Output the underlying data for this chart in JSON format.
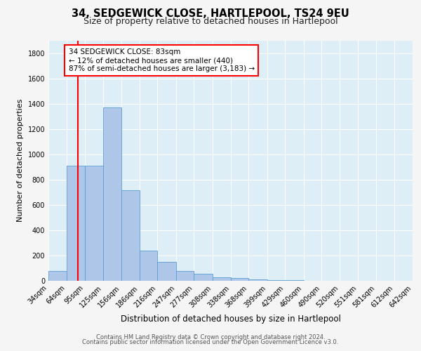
{
  "title1": "34, SEDGEWICK CLOSE, HARTLEPOOL, TS24 9EU",
  "title2": "Size of property relative to detached houses in Hartlepool",
  "xlabel": "Distribution of detached houses by size in Hartlepool",
  "ylabel": "Number of detached properties",
  "bar_left_edges": [
    34,
    64,
    95,
    125,
    156,
    186,
    216,
    247,
    277,
    308,
    338,
    368,
    399,
    429,
    460,
    490,
    520,
    551,
    581,
    612
  ],
  "bar_right_edges": [
    64,
    95,
    125,
    156,
    186,
    216,
    247,
    277,
    308,
    338,
    368,
    399,
    429,
    460,
    490,
    520,
    551,
    581,
    612,
    642
  ],
  "bar_heights": [
    75,
    910,
    910,
    1370,
    715,
    240,
    148,
    80,
    55,
    30,
    20,
    10,
    5,
    3,
    2,
    1,
    1,
    0,
    0,
    0
  ],
  "tick_labels": [
    "34sqm",
    "64sqm",
    "95sqm",
    "125sqm",
    "156sqm",
    "186sqm",
    "216sqm",
    "247sqm",
    "277sqm",
    "308sqm",
    "338sqm",
    "368sqm",
    "399sqm",
    "429sqm",
    "460sqm",
    "490sqm",
    "520sqm",
    "551sqm",
    "581sqm",
    "612sqm",
    "642sqm"
  ],
  "bar_color": "#aec6e8",
  "bar_edge_color": "#5a9fd4",
  "red_line_x": 83,
  "annotation_line1": "34 SEDGEWICK CLOSE: 83sqm",
  "annotation_line2": "← 12% of detached houses are smaller (440)",
  "annotation_line3": "87% of semi-detached houses are larger (3,183) →",
  "ylim": [
    0,
    1900
  ],
  "yticks": [
    0,
    200,
    400,
    600,
    800,
    1000,
    1200,
    1400,
    1600,
    1800
  ],
  "bg_color": "#ddeef6",
  "grid_color": "#ffffff",
  "fig_bg_color": "#f5f5f5",
  "footer1": "Contains HM Land Registry data © Crown copyright and database right 2024.",
  "footer2": "Contains public sector information licensed under the Open Government Licence v3.0.",
  "title1_fontsize": 10.5,
  "title2_fontsize": 9,
  "ylabel_fontsize": 8,
  "xlabel_fontsize": 8.5,
  "tick_fontsize": 7,
  "footer_fontsize": 6,
  "annot_fontsize": 7.5
}
